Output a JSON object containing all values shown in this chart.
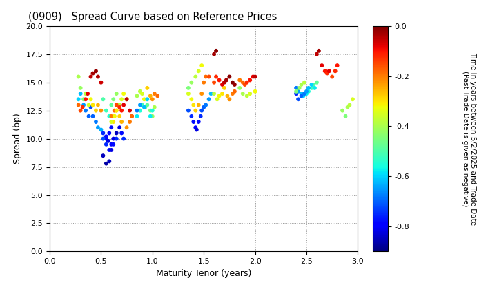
{
  "title": "(0909)   Spread Curve based on Reference Prices",
  "xlabel": "Maturity Tenor (years)",
  "ylabel": "Spread (bp)",
  "colorbar_label": "Time in years between 5/2/2025 and Trade Date\n(Past Trade Date is given as negative)",
  "xlim": [
    0.0,
    3.0
  ],
  "ylim": [
    0.0,
    20.0
  ],
  "xticks": [
    0.0,
    0.5,
    1.0,
    1.5,
    2.0,
    2.5,
    3.0
  ],
  "yticks": [
    0.0,
    2.5,
    5.0,
    7.5,
    10.0,
    12.5,
    15.0,
    17.5,
    20.0
  ],
  "cmap": "jet",
  "vmin": -0.9,
  "vmax": 0.0,
  "colorbar_ticks": [
    0.0,
    -0.2,
    -0.4,
    -0.6,
    -0.8
  ],
  "marker_size": 18,
  "background_color": "#ffffff",
  "scatter_data": {
    "x": [
      0.28,
      0.3,
      0.33,
      0.35,
      0.38,
      0.4,
      0.42,
      0.45,
      0.47,
      0.5,
      0.52,
      0.55,
      0.55,
      0.57,
      0.58,
      0.6,
      0.62,
      0.63,
      0.65,
      0.67,
      0.28,
      0.3,
      0.33,
      0.35,
      0.38,
      0.4,
      0.42,
      0.45,
      0.47,
      0.5,
      0.28,
      0.3,
      0.32,
      0.35,
      0.37,
      0.4,
      0.42,
      0.45,
      0.47,
      0.5,
      0.52,
      0.55,
      0.58,
      0.6,
      0.62,
      0.65,
      0.68,
      0.7,
      0.72,
      0.75,
      0.52,
      0.55,
      0.58,
      0.6,
      0.62,
      0.65,
      0.68,
      0.7,
      0.72,
      0.52,
      0.55,
      0.58,
      0.6,
      0.62,
      0.65,
      0.6,
      0.63,
      0.65,
      0.68,
      0.7,
      0.72,
      0.75,
      0.78,
      0.8,
      0.6,
      0.63,
      0.65,
      0.68,
      0.7,
      0.75,
      0.78,
      0.8,
      0.85,
      0.88,
      0.9,
      0.92,
      0.95,
      0.98,
      1.0,
      1.02,
      1.05,
      0.85,
      0.88,
      0.9,
      0.93,
      0.95,
      0.98,
      1.0,
      1.02,
      0.85,
      0.88,
      0.92,
      0.95,
      0.98,
      1.0,
      1.35,
      1.38,
      1.4,
      1.42,
      1.43,
      1.45,
      1.47,
      1.48,
      1.5,
      1.52,
      1.55,
      1.57,
      1.6,
      1.62,
      1.35,
      1.38,
      1.4,
      1.42,
      1.45,
      1.48,
      1.5,
      1.52,
      1.55,
      1.35,
      1.38,
      1.42,
      1.45,
      1.48,
      1.6,
      1.62,
      1.65,
      1.68,
      1.7,
      1.72,
      1.75,
      1.78,
      1.8,
      1.85,
      1.88,
      1.9,
      1.92,
      1.95,
      1.98,
      2.0,
      1.6,
      1.63,
      1.65,
      1.68,
      1.7,
      1.73,
      1.75,
      1.78,
      1.8,
      1.85,
      1.88,
      1.92,
      1.95,
      2.0,
      2.4,
      2.42,
      2.45,
      2.47,
      2.5,
      2.52,
      2.55,
      2.57,
      2.6,
      2.4,
      2.42,
      2.45,
      2.48,
      2.5,
      2.52,
      2.55,
      2.58,
      2.4,
      2.43,
      2.45,
      2.48,
      2.6,
      2.62,
      2.65,
      2.68,
      2.7,
      2.72,
      2.75,
      2.78,
      2.8,
      2.85,
      2.88,
      2.9,
      2.92,
      2.95
    ],
    "y": [
      13.5,
      14.0,
      13.0,
      12.5,
      12.0,
      12.8,
      12.0,
      11.5,
      11.0,
      10.8,
      10.5,
      10.0,
      10.2,
      9.8,
      10.5,
      11.0,
      11.5,
      12.0,
      12.5,
      13.0,
      15.5,
      14.5,
      13.5,
      14.0,
      13.0,
      13.5,
      13.0,
      12.5,
      13.0,
      12.5,
      13.0,
      12.5,
      12.8,
      13.5,
      14.0,
      15.5,
      15.8,
      16.0,
      15.5,
      15.0,
      13.5,
      12.5,
      12.0,
      13.0,
      13.5,
      14.0,
      13.0,
      13.5,
      14.0,
      13.5,
      10.0,
      9.5,
      9.0,
      9.5,
      10.0,
      10.5,
      11.0,
      10.5,
      10.0,
      8.5,
      7.8,
      8.0,
      9.0,
      9.5,
      10.0,
      12.0,
      12.5,
      13.0,
      12.8,
      12.5,
      13.0,
      13.5,
      12.5,
      12.0,
      11.5,
      12.0,
      12.5,
      12.0,
      11.5,
      11.0,
      11.5,
      12.0,
      13.8,
      14.2,
      14.0,
      13.5,
      14.5,
      13.8,
      13.5,
      14.0,
      13.8,
      12.0,
      12.5,
      13.0,
      12.8,
      13.0,
      12.5,
      12.0,
      12.8,
      12.5,
      13.0,
      12.8,
      13.5,
      12.0,
      12.5,
      12.5,
      12.0,
      11.5,
      11.0,
      10.8,
      11.5,
      12.0,
      12.5,
      12.8,
      13.0,
      13.5,
      14.0,
      17.5,
      17.8,
      14.0,
      13.5,
      13.0,
      12.5,
      13.0,
      14.0,
      15.0,
      15.5,
      15.5,
      14.5,
      15.0,
      15.5,
      16.0,
      16.5,
      15.0,
      15.5,
      15.2,
      14.8,
      15.0,
      15.2,
      15.5,
      15.0,
      14.8,
      15.2,
      15.0,
      14.8,
      15.0,
      15.2,
      15.5,
      15.5,
      14.0,
      13.5,
      13.8,
      14.0,
      14.5,
      13.8,
      13.5,
      14.0,
      14.2,
      14.5,
      14.0,
      13.8,
      14.0,
      14.2,
      14.5,
      14.2,
      14.0,
      13.8,
      14.0,
      14.2,
      14.5,
      14.8,
      15.0,
      14.0,
      13.5,
      13.8,
      14.0,
      14.2,
      14.5,
      14.8,
      14.5,
      14.2,
      14.5,
      14.8,
      15.0,
      17.5,
      17.8,
      16.5,
      16.0,
      15.8,
      16.0,
      15.5,
      16.0,
      16.5,
      12.5,
      12.0,
      12.8,
      13.0,
      13.5
    ],
    "c": [
      -0.6,
      -0.62,
      -0.65,
      -0.68,
      -0.7,
      -0.72,
      -0.7,
      -0.68,
      -0.65,
      -0.63,
      -0.75,
      -0.8,
      -0.78,
      -0.82,
      -0.8,
      -0.78,
      -0.3,
      -0.32,
      -0.28,
      -0.25,
      -0.4,
      -0.42,
      -0.45,
      -0.38,
      -0.35,
      -0.32,
      -0.3,
      -0.28,
      -0.25,
      -0.22,
      -0.18,
      -0.15,
      -0.12,
      -0.1,
      -0.08,
      -0.05,
      -0.03,
      -0.02,
      -0.04,
      -0.06,
      -0.5,
      -0.52,
      -0.55,
      -0.48,
      -0.45,
      -0.42,
      -0.38,
      -0.35,
      -0.32,
      -0.3,
      -0.72,
      -0.75,
      -0.78,
      -0.8,
      -0.82,
      -0.85,
      -0.82,
      -0.78,
      -0.75,
      -0.85,
      -0.87,
      -0.85,
      -0.82,
      -0.78,
      -0.75,
      -0.2,
      -0.18,
      -0.15,
      -0.12,
      -0.1,
      -0.08,
      -0.05,
      -0.07,
      -0.09,
      -0.35,
      -0.32,
      -0.3,
      -0.28,
      -0.25,
      -0.22,
      -0.2,
      -0.18,
      -0.4,
      -0.38,
      -0.35,
      -0.32,
      -0.28,
      -0.25,
      -0.22,
      -0.2,
      -0.18,
      -0.58,
      -0.55,
      -0.52,
      -0.5,
      -0.48,
      -0.45,
      -0.42,
      -0.4,
      -0.68,
      -0.65,
      -0.62,
      -0.6,
      -0.58,
      -0.55,
      -0.72,
      -0.75,
      -0.78,
      -0.8,
      -0.82,
      -0.78,
      -0.75,
      -0.72,
      -0.7,
      -0.68,
      -0.65,
      -0.62,
      -0.03,
      -0.01,
      -0.35,
      -0.32,
      -0.3,
      -0.28,
      -0.25,
      -0.22,
      -0.2,
      -0.18,
      -0.15,
      -0.45,
      -0.42,
      -0.38,
      -0.35,
      -0.32,
      -0.15,
      -0.12,
      -0.1,
      -0.08,
      -0.05,
      -0.03,
      -0.01,
      -0.0,
      -0.02,
      -0.2,
      -0.18,
      -0.15,
      -0.12,
      -0.1,
      -0.08,
      -0.05,
      -0.38,
      -0.35,
      -0.32,
      -0.3,
      -0.28,
      -0.25,
      -0.22,
      -0.2,
      -0.18,
      -0.42,
      -0.4,
      -0.38,
      -0.35,
      -0.32,
      -0.68,
      -0.65,
      -0.62,
      -0.6,
      -0.58,
      -0.55,
      -0.52,
      -0.5,
      -0.48,
      -0.75,
      -0.72,
      -0.7,
      -0.68,
      -0.65,
      -0.62,
      -0.6,
      -0.58,
      -0.45,
      -0.42,
      -0.4,
      -0.38,
      -0.05,
      -0.03,
      -0.08,
      -0.1,
      -0.12,
      -0.08,
      -0.15,
      -0.12,
      -0.1,
      -0.42,
      -0.45,
      -0.4,
      -0.38,
      -0.35
    ]
  }
}
